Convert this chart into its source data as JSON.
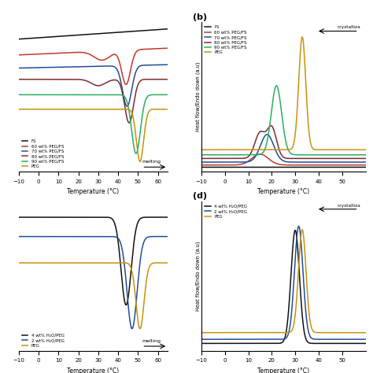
{
  "panel_a": {
    "xlabel": "Temperature (°C)",
    "xlim": [
      -10,
      65
    ],
    "annotation": "melting",
    "legend": [
      "FS",
      "60 wt% PEG/FS",
      "70 wt% PEG/FS",
      "80 wt% PEG/FS",
      "90 wt% PEG/FS",
      "PEG"
    ],
    "colors": [
      "#111111",
      "#c0392b",
      "#1f4e9c",
      "#7b2d2d",
      "#27ae60",
      "#c8920a"
    ]
  },
  "panel_b": {
    "label": "(b)",
    "xlabel": "Temperature (°C)",
    "ylabel": "Heat flow/Endo down (a.u)",
    "xlim": [
      -10,
      60
    ],
    "annotation": "crystalliza",
    "legend": [
      "FS",
      "60 wt% PEG/FS",
      "70 wt% PEG/FS",
      "80 wt% PEG/FS",
      "90 wt% PEG/FS",
      "PEG"
    ],
    "colors": [
      "#111111",
      "#c0392b",
      "#1f4e9c",
      "#7b2d2d",
      "#27ae60",
      "#c8920a"
    ]
  },
  "panel_c": {
    "xlabel": "Temperature (°C)",
    "xlim": [
      -10,
      65
    ],
    "annotation": "melting",
    "legend": [
      "4 wt% H₂O/PEG",
      "2 wt% H₂O/PEG",
      "PEG"
    ],
    "colors": [
      "#111111",
      "#1f4e9c",
      "#c8920a"
    ]
  },
  "panel_d": {
    "label": "(d)",
    "xlabel": "Temperature (°C)",
    "ylabel": "Heat flow/Endo down (a.u)",
    "xlim": [
      -10,
      60
    ],
    "annotation": "crystalliza",
    "legend": [
      "4 wt% H₂O/PEG",
      "2 wt% H₂O/PEG",
      "PEG"
    ],
    "colors": [
      "#111111",
      "#1f4e9c",
      "#c8920a"
    ]
  },
  "linewidth": 1.1
}
